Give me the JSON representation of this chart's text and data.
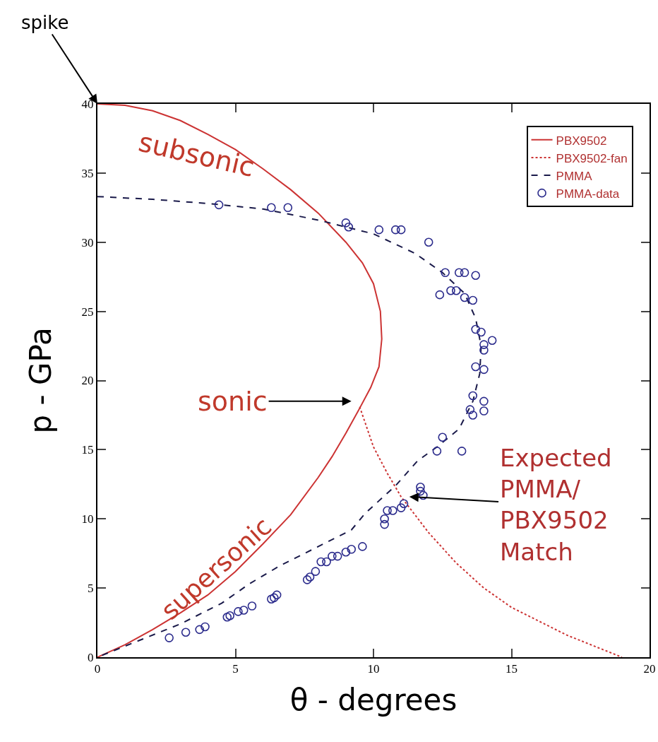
{
  "chart_data": {
    "type": "line",
    "xlabel": "θ - degrees",
    "ylabel": "p - GPa",
    "xlim": [
      0,
      20
    ],
    "xticks": [
      0,
      5,
      10,
      15,
      20
    ],
    "ylim": [
      0,
      40
    ],
    "yticks": [
      0,
      5,
      10,
      15,
      20,
      25,
      30,
      35,
      40
    ],
    "grid": false,
    "legend": "top right",
    "series": [
      {
        "name": "PBX9502",
        "line_style": "solid",
        "color": "#cc3333",
        "x": [
          0,
          1,
          2,
          3,
          4,
          5,
          6,
          7,
          8,
          9,
          9.6,
          10,
          10.25,
          10.3,
          10.2,
          9.9,
          9.5,
          9,
          8.5,
          8,
          7,
          6,
          5,
          4,
          3,
          2,
          1,
          0
        ],
        "values": [
          40,
          39.9,
          39.5,
          38.8,
          37.8,
          36.7,
          35.3,
          33.8,
          32.1,
          30,
          28.5,
          27,
          25,
          23,
          21,
          19.5,
          18,
          16.2,
          14.5,
          13,
          10.3,
          8.2,
          6.2,
          4.5,
          3.2,
          2,
          0.9,
          0
        ]
      },
      {
        "name": "PBX9502-fan",
        "line_style": "dotted",
        "color": "#cc3333",
        "x": [
          9.5,
          10,
          10.5,
          11,
          12,
          13,
          14,
          15,
          16,
          17,
          18,
          19
        ],
        "values": [
          18.1,
          15.2,
          13.3,
          11.6,
          9,
          6.8,
          5,
          3.6,
          2.6,
          1.6,
          0.8,
          0
        ]
      },
      {
        "name": "PMMA",
        "line_style": "dashed",
        "color": "#1a1a4a",
        "x": [
          0,
          2,
          4,
          6,
          8,
          10,
          11.5,
          12.5,
          13.3,
          13.7,
          13.9,
          13.85,
          13.6,
          13.1,
          12.3,
          11.6,
          10.8,
          9.7,
          9.2,
          8,
          6.6,
          5.5,
          4.5,
          3,
          1.5,
          0
        ],
        "values": [
          33.3,
          33.1,
          32.8,
          32.4,
          31.6,
          30.6,
          29.2,
          27.8,
          26.3,
          24.5,
          22.5,
          20.5,
          18.5,
          16.5,
          15.2,
          14.2,
          12.4,
          10.4,
          9.2,
          8,
          6.6,
          5.3,
          3.9,
          2.4,
          1.2,
          0
        ]
      },
      {
        "name": "PMMA-data",
        "type": "scatter",
        "marker": "circle",
        "color": "#2b2b8c",
        "x": [
          4.4,
          6.3,
          6.9,
          9.0,
          9.1,
          10.2,
          10.8,
          11.0,
          12.0,
          12.6,
          13.1,
          13.3,
          13.7,
          12.4,
          12.8,
          13.0,
          13.3,
          13.6,
          13.7,
          13.9,
          14.0,
          14.3,
          14.0,
          13.7,
          14.0,
          13.6,
          14.0,
          13.5,
          13.6,
          14.0,
          12.5,
          12.3,
          13.2,
          11.7,
          11.7,
          11.8,
          11.1,
          11.0,
          10.7,
          10.4,
          10.5,
          10.4,
          9.6,
          9.2,
          9.0,
          8.7,
          8.5,
          8.3,
          8.1,
          7.9,
          7.7,
          7.6,
          6.5,
          6.4,
          6.3,
          5.6,
          5.3,
          5.1,
          4.8,
          4.7,
          3.9,
          3.7,
          3.2,
          2.6
        ],
        "values": [
          32.7,
          32.5,
          32.5,
          31.4,
          31.1,
          30.9,
          30.9,
          30.9,
          30.0,
          27.8,
          27.8,
          27.8,
          27.6,
          26.2,
          26.5,
          26.5,
          26.0,
          25.8,
          23.7,
          23.5,
          22.6,
          22.9,
          22.2,
          21.0,
          20.8,
          18.9,
          18.5,
          17.9,
          17.5,
          17.8,
          15.9,
          14.9,
          14.9,
          12.3,
          12.0,
          11.7,
          11.1,
          10.8,
          10.6,
          10.0,
          10.6,
          9.6,
          8.0,
          7.8,
          7.6,
          7.3,
          7.3,
          6.9,
          6.9,
          6.2,
          5.8,
          5.6,
          4.5,
          4.3,
          4.2,
          3.7,
          3.4,
          3.3,
          3.0,
          2.9,
          2.2,
          2.0,
          1.8,
          1.4
        ]
      }
    ],
    "annotations": [
      {
        "text": "spike",
        "x": 0,
        "y": 40
      },
      "subsonic",
      "sonic",
      "supersonic",
      "Expected\nPMMA/\nPBX9502\nMatch"
    ]
  }
}
